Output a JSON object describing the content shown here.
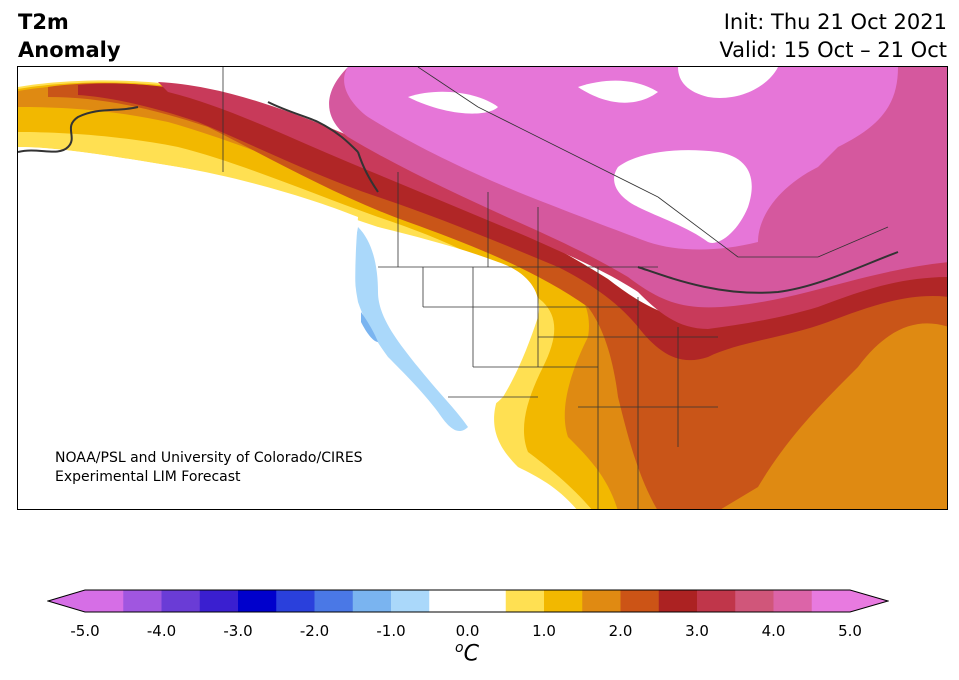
{
  "title": {
    "line1": "T2m",
    "line2": "Anomaly"
  },
  "dates": {
    "init": "Init: Thu 21 Oct 2021",
    "valid": "Valid: 15 Oct – 21 Oct"
  },
  "credit": {
    "line1": "NOAA/PSL and University of Colorado/CIRES",
    "line2": "Experimental LIM Forecast"
  },
  "colorbar": {
    "ticks": [
      "-5.0",
      "-4.0",
      "-3.0",
      "-2.0",
      "-1.0",
      "0.0",
      "1.0",
      "2.0",
      "3.0",
      "4.0",
      "5.0"
    ],
    "unit_base": "C",
    "unit_sup": "o",
    "colors": [
      "#d66ee6",
      "#a056e0",
      "#6a3cd6",
      "#3a1fd0",
      "#0000cc",
      "#2a40dc",
      "#4a78e6",
      "#7ab4f0",
      "#aad8fa",
      "#ffffff",
      "#ffffff",
      "#ffe052",
      "#f2b800",
      "#e08a12",
      "#cc5416",
      "#ac2222",
      "#c0364a",
      "#d0567a",
      "#dc64a8",
      "#e87ae0"
    ],
    "under_color": "#d66ee6",
    "over_color": "#e87ae0"
  },
  "map": {
    "colors": {
      "magenta": "#e676d8",
      "pink": "#d5589e",
      "rose": "#c83a5a",
      "crimson": "#b02626",
      "rust": "#c95518",
      "orange": "#df8a12",
      "gold": "#f2b800",
      "yellow": "#ffe052",
      "lightblue": "#aad8fa",
      "blue": "#7ab4f0",
      "white": "#ffffff",
      "border": "#333333"
    }
  }
}
